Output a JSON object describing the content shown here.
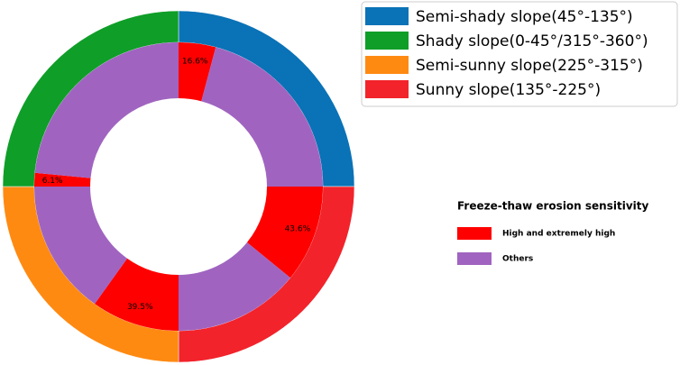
{
  "chart_data": {
    "type": "nested-donut",
    "categories": [
      "Semi-shady slope(45°-135°)",
      "Shady slope(0-45°/315°-360°)",
      "Semi-sunny slope(225°-315°)",
      "Sunny slope(135°-225°)"
    ],
    "colors": [
      "#0a72b6",
      "#0f9e28",
      "#ff8a12",
      "#f2232b"
    ],
    "values": [
      25,
      25,
      25,
      25
    ],
    "inner_title": "Freeze-thaw erosion sensitivity",
    "series": [
      {
        "name": "High and extremely high",
        "color": "#ff0000",
        "values": [
          16.6,
          6.1,
          39.5,
          43.6
        ],
        "value_labels": [
          "16.6%",
          "6.1%",
          "39.5%",
          "43.6%"
        ]
      },
      {
        "name": "Others",
        "color": "#a064c0",
        "values": [
          83.4,
          93.9,
          60.5,
          56.4
        ]
      }
    ]
  }
}
